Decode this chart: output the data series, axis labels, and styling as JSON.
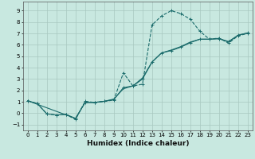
{
  "xlabel": "Humidex (Indice chaleur)",
  "bg_color": "#c8e8e0",
  "grid_color": "#a8c8c0",
  "line_color": "#1a6b6b",
  "xlim": [
    -0.5,
    23.5
  ],
  "ylim": [
    -1.5,
    9.8
  ],
  "xticks": [
    0,
    1,
    2,
    3,
    4,
    5,
    6,
    7,
    8,
    9,
    10,
    11,
    12,
    13,
    14,
    15,
    16,
    17,
    18,
    19,
    20,
    21,
    22,
    23
  ],
  "yticks": [
    -1,
    0,
    1,
    2,
    3,
    4,
    5,
    6,
    7,
    8,
    9
  ],
  "curve1_x": [
    0,
    1,
    2,
    3,
    4,
    5,
    6,
    7,
    8,
    9,
    10,
    11,
    12,
    13,
    14,
    15,
    16,
    17,
    18,
    19,
    20,
    21,
    22,
    23
  ],
  "curve1_y": [
    1.1,
    0.85,
    -0.05,
    -0.15,
    -0.1,
    -0.55,
    1.05,
    0.95,
    1.05,
    1.15,
    3.55,
    2.4,
    2.55,
    7.75,
    8.55,
    9.0,
    8.75,
    8.25,
    7.2,
    6.5,
    6.6,
    6.15,
    6.8,
    7.0
  ],
  "curve2_x": [
    0,
    1,
    2,
    3,
    4,
    5,
    6,
    7,
    8,
    9,
    10,
    11,
    12,
    13,
    14,
    15,
    16,
    17,
    18,
    19,
    20,
    21,
    22,
    23
  ],
  "curve2_y": [
    1.1,
    0.85,
    -0.05,
    -0.15,
    -0.1,
    -0.45,
    0.95,
    0.95,
    1.05,
    1.2,
    2.25,
    2.4,
    3.0,
    4.5,
    5.3,
    5.5,
    5.8,
    6.2,
    6.5,
    6.5,
    6.55,
    6.3,
    6.85,
    7.05
  ],
  "curve3_x": [
    0,
    5,
    6,
    7,
    8,
    9,
    10,
    11,
    12,
    13,
    14,
    15,
    16,
    17,
    18,
    19,
    20,
    21,
    22,
    23
  ],
  "curve3_y": [
    1.1,
    -0.45,
    0.95,
    0.95,
    1.05,
    1.25,
    2.15,
    2.4,
    3.1,
    4.5,
    5.3,
    5.55,
    5.85,
    6.25,
    6.5,
    6.5,
    6.55,
    6.25,
    6.85,
    7.05
  ]
}
